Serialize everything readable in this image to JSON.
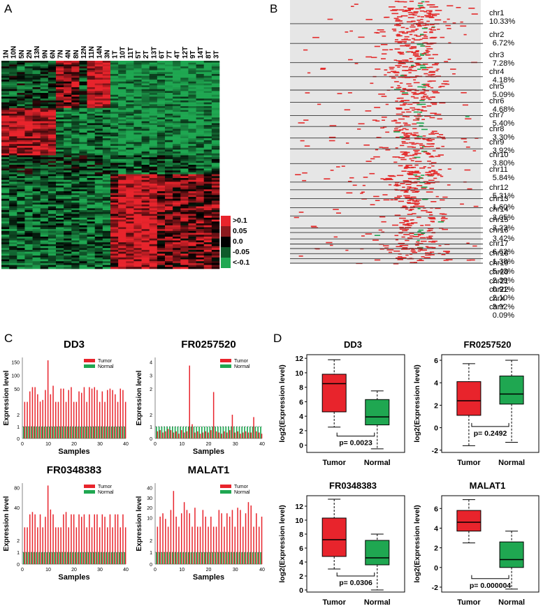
{
  "panels": {
    "a": {
      "letter": "A",
      "sample_labels": [
        "1N",
        "10N",
        "5N",
        "2N",
        "13N",
        "9N",
        "6N",
        "7N",
        "4N",
        "8N",
        "12N",
        "11N",
        "14N",
        "3N",
        "1T",
        "10T",
        "11T",
        "5T",
        "2T",
        "13T",
        "6T",
        "7T",
        "4T",
        "12T",
        "9T",
        "14T",
        "8T",
        "3T"
      ],
      "legend": [
        ">0.1",
        "0.05",
        "0.0",
        "-0.05",
        "<-0.1"
      ],
      "colors": {
        "high": "#e8242c",
        "low": "#1fa751",
        "mid": "#000000"
      }
    },
    "b": {
      "letter": "B",
      "chromosomes": [
        {
          "name": "chr1",
          "pct": "10.33%"
        },
        {
          "name": "chr2",
          "pct": "6.72%"
        },
        {
          "name": "chr3",
          "pct": "7.28%"
        },
        {
          "name": "chr4",
          "pct": "4.18%"
        },
        {
          "name": "chr5",
          "pct": "5.09%"
        },
        {
          "name": "chr6",
          "pct": "4.68%"
        },
        {
          "name": "chr7",
          "pct": "5.40%"
        },
        {
          "name": "chr8",
          "pct": "3.30%"
        },
        {
          "name": "chr9",
          "pct": "3.92%"
        },
        {
          "name": "chr10",
          "pct": "3.80%"
        },
        {
          "name": "chr11",
          "pct": "5.84%"
        },
        {
          "name": "chr12",
          "pct": "5.31%"
        },
        {
          "name": "chr13",
          "pct": "1.60%"
        },
        {
          "name": "chr14",
          "pct": "3.05%"
        },
        {
          "name": "chr15",
          "pct": "3.23%"
        },
        {
          "name": "chr16",
          "pct": "3.42%"
        },
        {
          "name": "chr17",
          "pct": "6.62%"
        },
        {
          "name": "chr18",
          "pct": "1.38%"
        },
        {
          "name": "chr19",
          "pct": "5.43%"
        },
        {
          "name": "chr20",
          "pct": "2.39%"
        },
        {
          "name": "chr21",
          "pct": "0.91%"
        },
        {
          "name": "chr22",
          "pct": "2.10%"
        },
        {
          "name": "chrX",
          "pct": "3.92%"
        },
        {
          "name": "chrY",
          "pct": "0.09%"
        }
      ]
    },
    "c": {
      "letter": "C",
      "tick_lo": [
        "0",
        "1",
        "2"
      ]
    },
    "d": {
      "letter": "D"
    }
  },
  "chart_data": [
    {
      "type": "bar",
      "title": "DD3",
      "xlabel": "Samples",
      "ylabel": "Expression level",
      "series": [
        {
          "name": "Tumor"
        },
        {
          "name": "Normal"
        }
      ],
      "x_ticks": [
        0,
        10,
        20,
        30,
        40
      ],
      "upper_ticks": [
        "50",
        "100",
        "150"
      ],
      "upper_max": 160,
      "tumor_values": [
        3,
        3,
        40,
        55,
        55,
        30,
        4,
        10,
        45,
        150,
        30,
        60,
        3,
        3,
        50,
        50,
        3,
        45,
        55,
        3,
        3,
        40,
        35,
        55,
        3,
        55,
        50,
        55,
        45,
        3,
        40,
        3,
        45,
        50,
        45,
        30,
        3,
        50,
        45,
        3
      ],
      "normal_values": [
        1,
        1,
        1,
        1,
        1,
        1,
        1,
        1,
        1,
        1,
        1,
        1,
        1,
        1,
        1,
        1,
        1,
        1,
        1,
        1,
        1,
        1,
        1,
        1,
        1,
        1,
        1,
        1,
        1,
        1,
        1,
        1,
        1,
        1,
        1,
        1,
        1,
        1,
        1,
        1
      ]
    },
    {
      "type": "bar",
      "title": "FR0257520",
      "xlabel": "Samples",
      "ylabel": "Expression level",
      "series": [
        {
          "name": "Tumor"
        },
        {
          "name": "Normal"
        }
      ],
      "x_ticks": [
        0,
        10,
        20,
        30,
        40
      ],
      "upper_ticks": [
        "2",
        "3",
        "4"
      ],
      "upper_max": 4.2,
      "tumor_values": [
        0.6,
        0.7,
        0.5,
        0.6,
        0.8,
        0.7,
        0.5,
        0.6,
        0.4,
        0.7,
        0.5,
        0.6,
        3.8,
        1.2,
        0.5,
        0.6,
        0.4,
        0.5,
        0.6,
        0.5,
        0.7,
        2.5,
        0.6,
        0.5,
        0.4,
        0.6,
        0.5,
        0.7,
        2.0,
        0.5,
        0.6,
        0.4,
        0.5,
        0.6,
        0.5,
        0.5,
        1.8,
        0.6,
        0.5,
        0.4
      ],
      "normal_values": [
        1,
        1,
        1,
        1,
        1,
        1,
        1,
        1,
        1,
        1,
        1,
        1,
        1,
        1,
        1,
        1,
        1,
        1,
        1,
        1,
        1,
        1,
        1,
        1,
        1,
        1,
        1,
        1,
        1,
        1,
        1,
        1,
        1,
        1,
        1,
        1,
        1,
        1,
        1,
        1
      ]
    },
    {
      "type": "bar",
      "title": "FR0348383",
      "xlabel": "Samples",
      "ylabel": "Expression level",
      "series": [
        {
          "name": "Tumor"
        },
        {
          "name": "Normal"
        }
      ],
      "x_ticks": [
        0,
        10,
        20,
        30,
        40
      ],
      "upper_ticks": [
        "40",
        "80"
      ],
      "upper_max": 95,
      "tumor_values": [
        3,
        3,
        30,
        35,
        30,
        3,
        30,
        3,
        25,
        90,
        40,
        30,
        3,
        3,
        3,
        30,
        35,
        3,
        30,
        30,
        3,
        30,
        25,
        30,
        3,
        30,
        3,
        30,
        30,
        3,
        30,
        25,
        3,
        30,
        3,
        30,
        30,
        3,
        30,
        3
      ],
      "normal_values": [
        1,
        1,
        1,
        1,
        1,
        1,
        1,
        1,
        1,
        1,
        1,
        1,
        1,
        1,
        1,
        1,
        1,
        1,
        1,
        1,
        1,
        1,
        1,
        1,
        1,
        1,
        1,
        1,
        1,
        1,
        1,
        1,
        1,
        1,
        1,
        1,
        1,
        1,
        1,
        1
      ]
    },
    {
      "type": "bar",
      "title": "MALAT1",
      "xlabel": "Samples",
      "ylabel": "Expression level",
      "series": [
        {
          "name": "Tumor"
        },
        {
          "name": "Normal"
        }
      ],
      "x_ticks": [
        0,
        10,
        20,
        30,
        40
      ],
      "upper_ticks": [
        "10",
        "20",
        "30",
        "40"
      ],
      "upper_max": 42,
      "tumor_values": [
        3,
        12,
        15,
        10,
        3,
        18,
        35,
        12,
        3,
        15,
        25,
        18,
        15,
        3,
        20,
        3,
        3,
        18,
        12,
        3,
        12,
        3,
        3,
        18,
        15,
        3,
        15,
        12,
        18,
        3,
        20,
        18,
        3,
        15,
        25,
        22,
        3,
        15,
        3,
        12
      ],
      "normal_values": [
        1,
        1,
        1,
        1,
        1,
        1,
        1,
        1,
        1,
        1,
        1,
        1,
        1,
        1,
        1,
        1,
        1,
        1,
        1,
        1,
        1,
        1,
        1,
        1,
        1,
        1,
        1,
        1,
        1,
        1,
        1,
        1,
        1,
        1,
        1,
        1,
        1,
        1,
        1,
        1
      ]
    },
    {
      "type": "box",
      "title": "DD3",
      "ylabel": "log2(Expression level)",
      "categories": [
        "Tumor",
        "Normal"
      ],
      "ylim": [
        -1,
        12.5
      ],
      "yticks": [
        0,
        2,
        4,
        6,
        8,
        10,
        12
      ],
      "boxes": [
        {
          "min": 2.5,
          "q1": 4.6,
          "median": 8.5,
          "q3": 9.8,
          "max": 11.8,
          "color": "#e8242c"
        },
        {
          "min": -0.5,
          "q1": 2.8,
          "median": 3.9,
          "q3": 6.3,
          "max": 7.5,
          "color": "#1fa751"
        }
      ],
      "pvalue": "p= 0.0023"
    },
    {
      "type": "box",
      "title": "FR0257520",
      "ylabel": "log2(Expression level)",
      "categories": [
        "Tumor",
        "Normal"
      ],
      "ylim": [
        -2.2,
        6.5
      ],
      "yticks": [
        -2,
        0,
        2,
        4,
        6
      ],
      "boxes": [
        {
          "min": -1.6,
          "q1": 1.1,
          "median": 2.4,
          "q3": 4.1,
          "max": 5.7,
          "color": "#e8242c"
        },
        {
          "min": -1.3,
          "q1": 2.1,
          "median": 3.0,
          "q3": 4.6,
          "max": 6.0,
          "color": "#1fa751"
        }
      ],
      "pvalue": "p= 0.2492"
    },
    {
      "type": "box",
      "title": "FR0348383",
      "ylabel": "log2(Expression level)",
      "categories": [
        "Tumor",
        "Normal"
      ],
      "ylim": [
        -0.3,
        13.5
      ],
      "yticks": [
        0,
        2,
        4,
        6,
        8,
        10,
        12
      ],
      "boxes": [
        {
          "min": 3.0,
          "q1": 4.8,
          "median": 7.2,
          "q3": 10.3,
          "max": 13.0,
          "color": "#e8242c"
        },
        {
          "min": 0.0,
          "q1": 3.6,
          "median": 4.6,
          "q3": 7.1,
          "max": 8.0,
          "color": "#1fa751"
        }
      ],
      "pvalue": "p= 0.0306"
    },
    {
      "type": "box",
      "title": "MALAT1",
      "ylabel": "log2(Expression level)",
      "categories": [
        "Tumor",
        "Normal"
      ],
      "ylim": [
        -2.5,
        7.3
      ],
      "yticks": [
        -2,
        0,
        2,
        4,
        6
      ],
      "boxes": [
        {
          "min": 2.5,
          "q1": 3.7,
          "median": 4.6,
          "q3": 5.8,
          "max": 6.9,
          "color": "#e8242c"
        },
        {
          "min": -2.2,
          "q1": 0.0,
          "median": 0.8,
          "q3": 2.6,
          "max": 3.7,
          "color": "#1fa751"
        }
      ],
      "pvalue": "p= 0.000004"
    }
  ]
}
